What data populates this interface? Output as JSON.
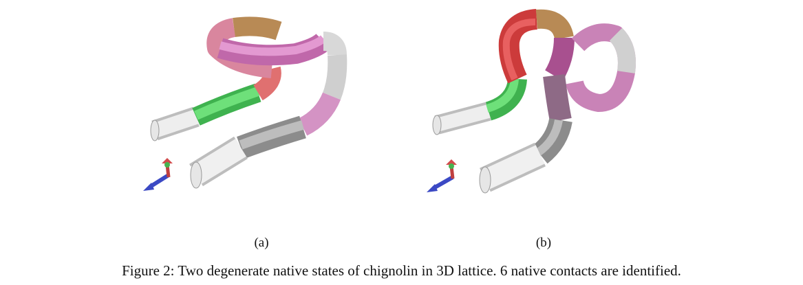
{
  "figure": {
    "panels": [
      {
        "label": "(a)"
      },
      {
        "label": "(b)"
      }
    ],
    "caption": "Figure 2: Two degenerate native states of chignolin in 3D lattice. 6 native contacts are identified."
  }
}
